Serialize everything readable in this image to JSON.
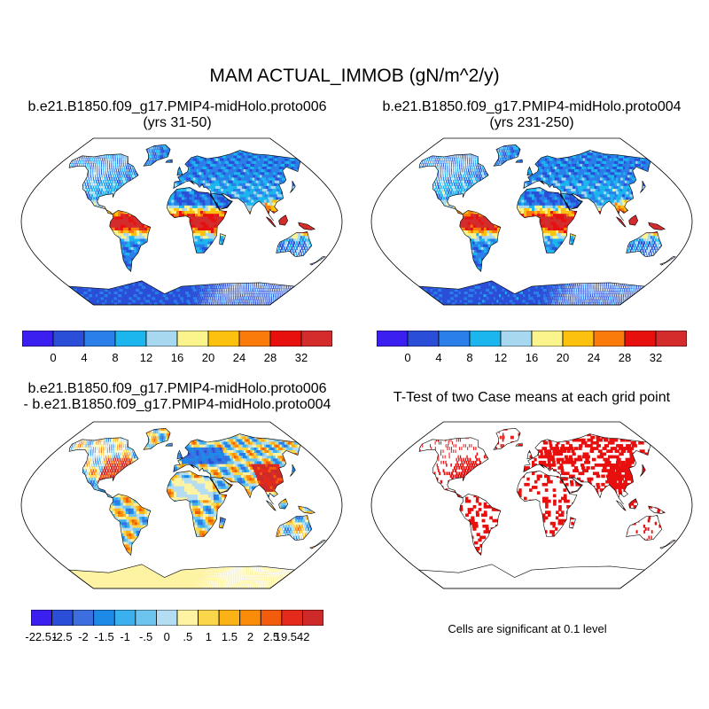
{
  "figure": {
    "title": "MAM ACTUAL_IMMOB (gN/m^2/y)"
  },
  "panels": [
    {
      "id": "case1",
      "title_line1": "b.e21.B1850.f09_g17.PMIP4-midHolo.proto006",
      "title_line2": "(yrs 31-50)",
      "style": "field"
    },
    {
      "id": "case2",
      "title_line1": "b.e21.B1850.f09_g17.PMIP4-midHolo.proto004",
      "title_line2": "(yrs 231-250)",
      "style": "field"
    },
    {
      "id": "diff",
      "title_line1": "b.e21.B1850.f09_g17.PMIP4-midHolo.proto006",
      "title_line2": "- b.e21.B1850.f09_g17.PMIP4-midHolo.proto004",
      "style": "diff"
    },
    {
      "id": "ttest",
      "title_line1": "T-Test of two Case means at each grid point",
      "title_line2": "",
      "style": "ttest"
    }
  ],
  "colorbar_main": {
    "colors": [
      "#3b1ff0",
      "#2a4ed8",
      "#2a7fe8",
      "#1cb6ef",
      "#a8d8f0",
      "#fbf38c",
      "#fcc10e",
      "#fa7a0a",
      "#e8100e",
      "#d42c2c"
    ],
    "labels": [
      "0",
      "4",
      "8",
      "12",
      "16",
      "20",
      "24",
      "28",
      "32"
    ]
  },
  "colorbar_diff": {
    "colors": [
      "#3b1ff0",
      "#2a4ed8",
      "#3d6ee0",
      "#1e8ae8",
      "#3ab0ee",
      "#6cc4ef",
      "#b4dcf2",
      "#fdf3a2",
      "#fcd64a",
      "#fbb216",
      "#fb8c0a",
      "#f35c0c",
      "#e42a1a",
      "#cf2a2a"
    ],
    "labels": [
      "-22.51",
      "-2.5",
      "-2",
      "-1.5",
      "-1",
      "-.5",
      "0",
      ".5",
      "1",
      "1.5",
      "2",
      "2.5",
      "19.542"
    ]
  },
  "ttest_note": "Cells are significant at 0.1 level"
}
